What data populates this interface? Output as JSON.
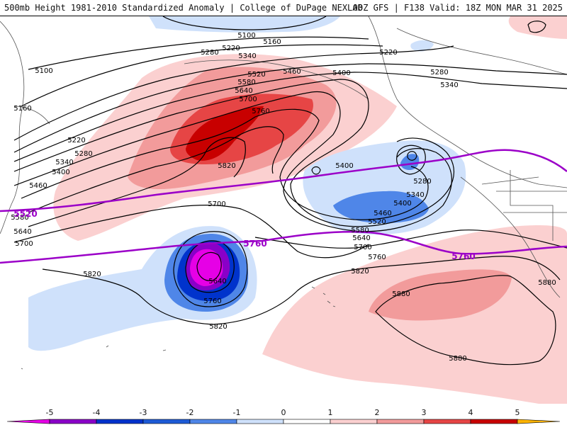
{
  "header": {
    "title": "500mb Height 1981-2010 Standardized Anomaly | College of DuPage NEXLAB",
    "run_info": "00Z GFS | F138 Valid: 18Z MON MAR 31 2025"
  },
  "contour_labels": {
    "c5100a": "5100",
    "c5100b": "5100",
    "c5160a": "5160",
    "c5160b": "5160",
    "c5220a": "5220",
    "c5220b": "5220",
    "c5220c": "5220",
    "c5280a": "5280",
    "c5280b": "5280",
    "c5280c": "5280",
    "c5280d": "5280",
    "c5340a": "5340",
    "c5340b": "5340",
    "c5340c": "5340",
    "c5340d": "5340",
    "c5400a": "5400",
    "c5400b": "5400",
    "c5400c": "5400",
    "c5400d": "5400",
    "c5460a": "5460",
    "c5460b": "5460",
    "c5460c": "5460",
    "c5520a": "5520",
    "c5520b": "5520",
    "c5580a": "5580",
    "c5580b": "5580",
    "c5580c": "5580",
    "c5640a": "5640",
    "c5640b": "5640",
    "c5640c": "5640",
    "c5640d": "5640",
    "c5700a": "5700",
    "c5700b": "5700",
    "c5700c": "5700",
    "c5700d": "5700",
    "c5760a": "5760",
    "c5760b": "5760",
    "c5760c": "5760",
    "c5820a": "5820",
    "c5820b": "5820",
    "c5820c": "5820",
    "c5820d": "5820",
    "c5880a": "5880",
    "c5880b": "5880",
    "c5880c": "5880",
    "p5520": "5520",
    "p5760a": "5760",
    "p5760b": "5760"
  },
  "colorbar": {
    "ticks": [
      "-5",
      "-4",
      "-3",
      "-2",
      "-1",
      "0",
      "1",
      "2",
      "3",
      "4",
      "5"
    ],
    "colors": [
      "#e600e6",
      "#8a00c8",
      "#0033cc",
      "#1e5bd6",
      "#4f86e8",
      "#cfe1fb",
      "#ffffff",
      "#fbd0d0",
      "#f29b9b",
      "#e64545",
      "#c80000",
      "#ff8c00",
      "#ffb400"
    ]
  },
  "colors": {
    "highlight_contour": "#9b00c8",
    "contour": "#000000"
  }
}
